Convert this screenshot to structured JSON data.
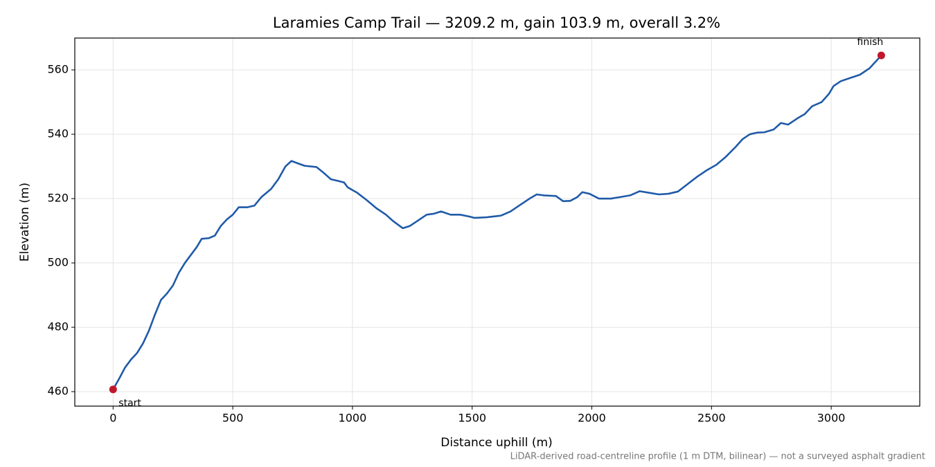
{
  "chart_data": {
    "type": "line",
    "title": "Laramies Camp Trail — 3209.2 m, gain 103.9 m, overall 3.2%",
    "xlabel": "Distance uphill (m)",
    "ylabel": "Elevation (m)",
    "note": "LiDAR-derived road-centreline profile (1 m DTM, bilinear) — not a surveyed asphalt gradient",
    "start_label": "start",
    "finish_label": "finish",
    "marker_color": "#c0182a",
    "grid": true,
    "xlim": [
      -160,
      3370
    ],
    "ylim": [
      455.5,
      569.9
    ],
    "xticks": [
      0,
      500,
      1000,
      1500,
      2000,
      2500,
      3000
    ],
    "yticks": [
      460,
      480,
      500,
      520,
      540,
      560
    ],
    "x": [
      0,
      25,
      50,
      75,
      100,
      125,
      150,
      175,
      200,
      225,
      250,
      275,
      300,
      325,
      350,
      370,
      400,
      425,
      450,
      475,
      500,
      525,
      560,
      590,
      620,
      660,
      690,
      720,
      745,
      770,
      800,
      850,
      880,
      910,
      940,
      965,
      980,
      1020,
      1060,
      1100,
      1140,
      1170,
      1210,
      1240,
      1280,
      1310,
      1340,
      1370,
      1410,
      1450,
      1490,
      1510,
      1560,
      1620,
      1660,
      1700,
      1740,
      1770,
      1800,
      1850,
      1880,
      1910,
      1940,
      1960,
      1990,
      2030,
      2080,
      2120,
      2160,
      2200,
      2240,
      2280,
      2320,
      2360,
      2400,
      2440,
      2480,
      2520,
      2560,
      2600,
      2630,
      2660,
      2690,
      2720,
      2760,
      2790,
      2820,
      2860,
      2890,
      2920,
      2960,
      2990,
      3010,
      3040,
      3080,
      3120,
      3160,
      3209.2
    ],
    "series": [
      {
        "name": "Elevation",
        "color": "#1f5aa8",
        "values": [
          460.7,
          464,
          467.5,
          470,
          472,
          475,
          479,
          484,
          488.5,
          490.5,
          493,
          497,
          500,
          502.5,
          505,
          507.5,
          507.7,
          508.5,
          511.5,
          513.5,
          515,
          517.3,
          517.3,
          517.8,
          520.5,
          523,
          526,
          530,
          531.7,
          531,
          530.2,
          529.8,
          528,
          526,
          525.5,
          525,
          523.5,
          521.8,
          519.5,
          517,
          515,
          513,
          510.8,
          511.5,
          513.5,
          515,
          515.3,
          516,
          515,
          515,
          514.4,
          514,
          514.2,
          514.7,
          516,
          518,
          520,
          521.3,
          521,
          520.8,
          519.2,
          519.3,
          520.5,
          522,
          521.5,
          520,
          520,
          520.5,
          521,
          522.3,
          521.8,
          521.3,
          521.5,
          522.2,
          524.5,
          526.8,
          528.8,
          530.5,
          533,
          536,
          538.5,
          540,
          540.5,
          540.6,
          541.5,
          543.5,
          543,
          545,
          546.3,
          548.7,
          550,
          552.5,
          555,
          556.5,
          557.5,
          558.5,
          560.5,
          564.5
        ]
      }
    ]
  }
}
